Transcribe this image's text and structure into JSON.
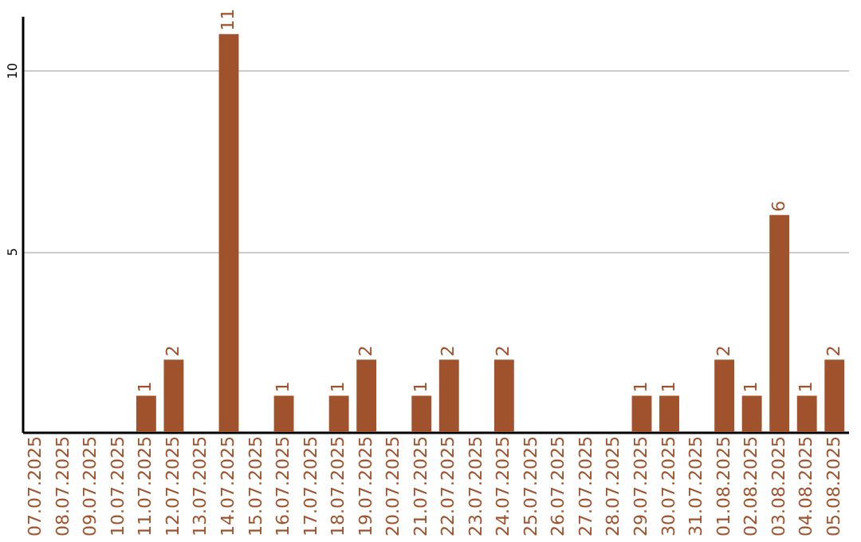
{
  "chart_data": {
    "type": "bar",
    "categories": [
      "07.07.2025",
      "08.07.2025",
      "09.07.2025",
      "10.07.2025",
      "11.07.2025",
      "12.07.2025",
      "13.07.2025",
      "14.07.2025",
      "15.07.2025",
      "16.07.2025",
      "17.07.2025",
      "18.07.2025",
      "19.07.2025",
      "20.07.2025",
      "21.07.2025",
      "22.07.2025",
      "23.07.2025",
      "24.07.2025",
      "25.07.2025",
      "26.07.2025",
      "27.07.2025",
      "28.07.2025",
      "29.07.2025",
      "30.07.2025",
      "31.07.2025",
      "01.08.2025",
      "02.08.2025",
      "03.08.2025",
      "04.08.2025",
      "05.08.2025"
    ],
    "values": [
      0,
      0,
      0,
      0,
      1,
      2,
      0,
      11,
      0,
      1,
      0,
      1,
      2,
      0,
      1,
      2,
      0,
      2,
      0,
      0,
      0,
      0,
      1,
      1,
      0,
      2,
      1,
      6,
      1,
      2
    ],
    "value_labels": [
      null,
      null,
      null,
      null,
      "1",
      "2",
      null,
      "11",
      null,
      "1",
      null,
      "1",
      "2",
      null,
      "1",
      "2",
      null,
      "2",
      null,
      null,
      null,
      null,
      "1",
      "1",
      null,
      "2",
      "1",
      "6",
      "1",
      "2"
    ],
    "color": "#a0522d",
    "ylim": [
      0,
      11.5
    ],
    "yticks": [
      5,
      10
    ],
    "grid": "y"
  }
}
